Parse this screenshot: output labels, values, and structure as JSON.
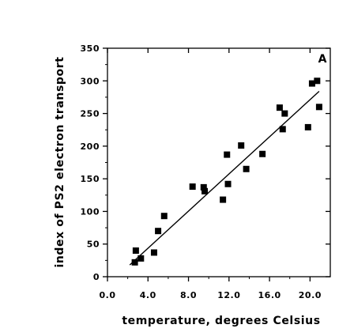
{
  "chart_data": {
    "type": "scatter",
    "panel_label": "A",
    "xlabel": "temperature, degrees Celsius",
    "ylabel": "index of PS2 electron transport",
    "xlim": [
      0,
      22
    ],
    "ylim": [
      0,
      350
    ],
    "x_ticks": [
      {
        "value": 0,
        "label": "0.0"
      },
      {
        "value": 4,
        "label": "4.0"
      },
      {
        "value": 8,
        "label": "8.0"
      },
      {
        "value": 12,
        "label": "12.0"
      },
      {
        "value": 16,
        "label": "16.0"
      },
      {
        "value": 20,
        "label": "20.0"
      }
    ],
    "y_ticks": [
      {
        "value": 0,
        "label": "0"
      },
      {
        "value": 50,
        "label": "50"
      },
      {
        "value": 100,
        "label": "100"
      },
      {
        "value": 150,
        "label": "150"
      },
      {
        "value": 200,
        "label": "200"
      },
      {
        "value": 250,
        "label": "250"
      },
      {
        "value": 300,
        "label": "300"
      },
      {
        "value": 350,
        "label": "350"
      }
    ],
    "grid": false,
    "marker": "square",
    "marker_color": "#000000",
    "points": [
      {
        "x": 2.7,
        "y": 22
      },
      {
        "x": 2.8,
        "y": 40
      },
      {
        "x": 3.3,
        "y": 28
      },
      {
        "x": 4.6,
        "y": 37
      },
      {
        "x": 5.0,
        "y": 70
      },
      {
        "x": 5.6,
        "y": 93
      },
      {
        "x": 8.4,
        "y": 138
      },
      {
        "x": 9.5,
        "y": 137
      },
      {
        "x": 9.6,
        "y": 131
      },
      {
        "x": 11.4,
        "y": 118
      },
      {
        "x": 11.8,
        "y": 187
      },
      {
        "x": 11.9,
        "y": 142
      },
      {
        "x": 13.2,
        "y": 201
      },
      {
        "x": 13.7,
        "y": 165
      },
      {
        "x": 15.3,
        "y": 188
      },
      {
        "x": 17.0,
        "y": 259
      },
      {
        "x": 17.3,
        "y": 226
      },
      {
        "x": 17.5,
        "y": 250
      },
      {
        "x": 19.8,
        "y": 229
      },
      {
        "x": 20.2,
        "y": 296
      },
      {
        "x": 20.7,
        "y": 300
      },
      {
        "x": 20.9,
        "y": 260
      }
    ],
    "trend_line": {
      "x": [
        2.2,
        20.9
      ],
      "y": [
        18,
        284
      ]
    }
  }
}
